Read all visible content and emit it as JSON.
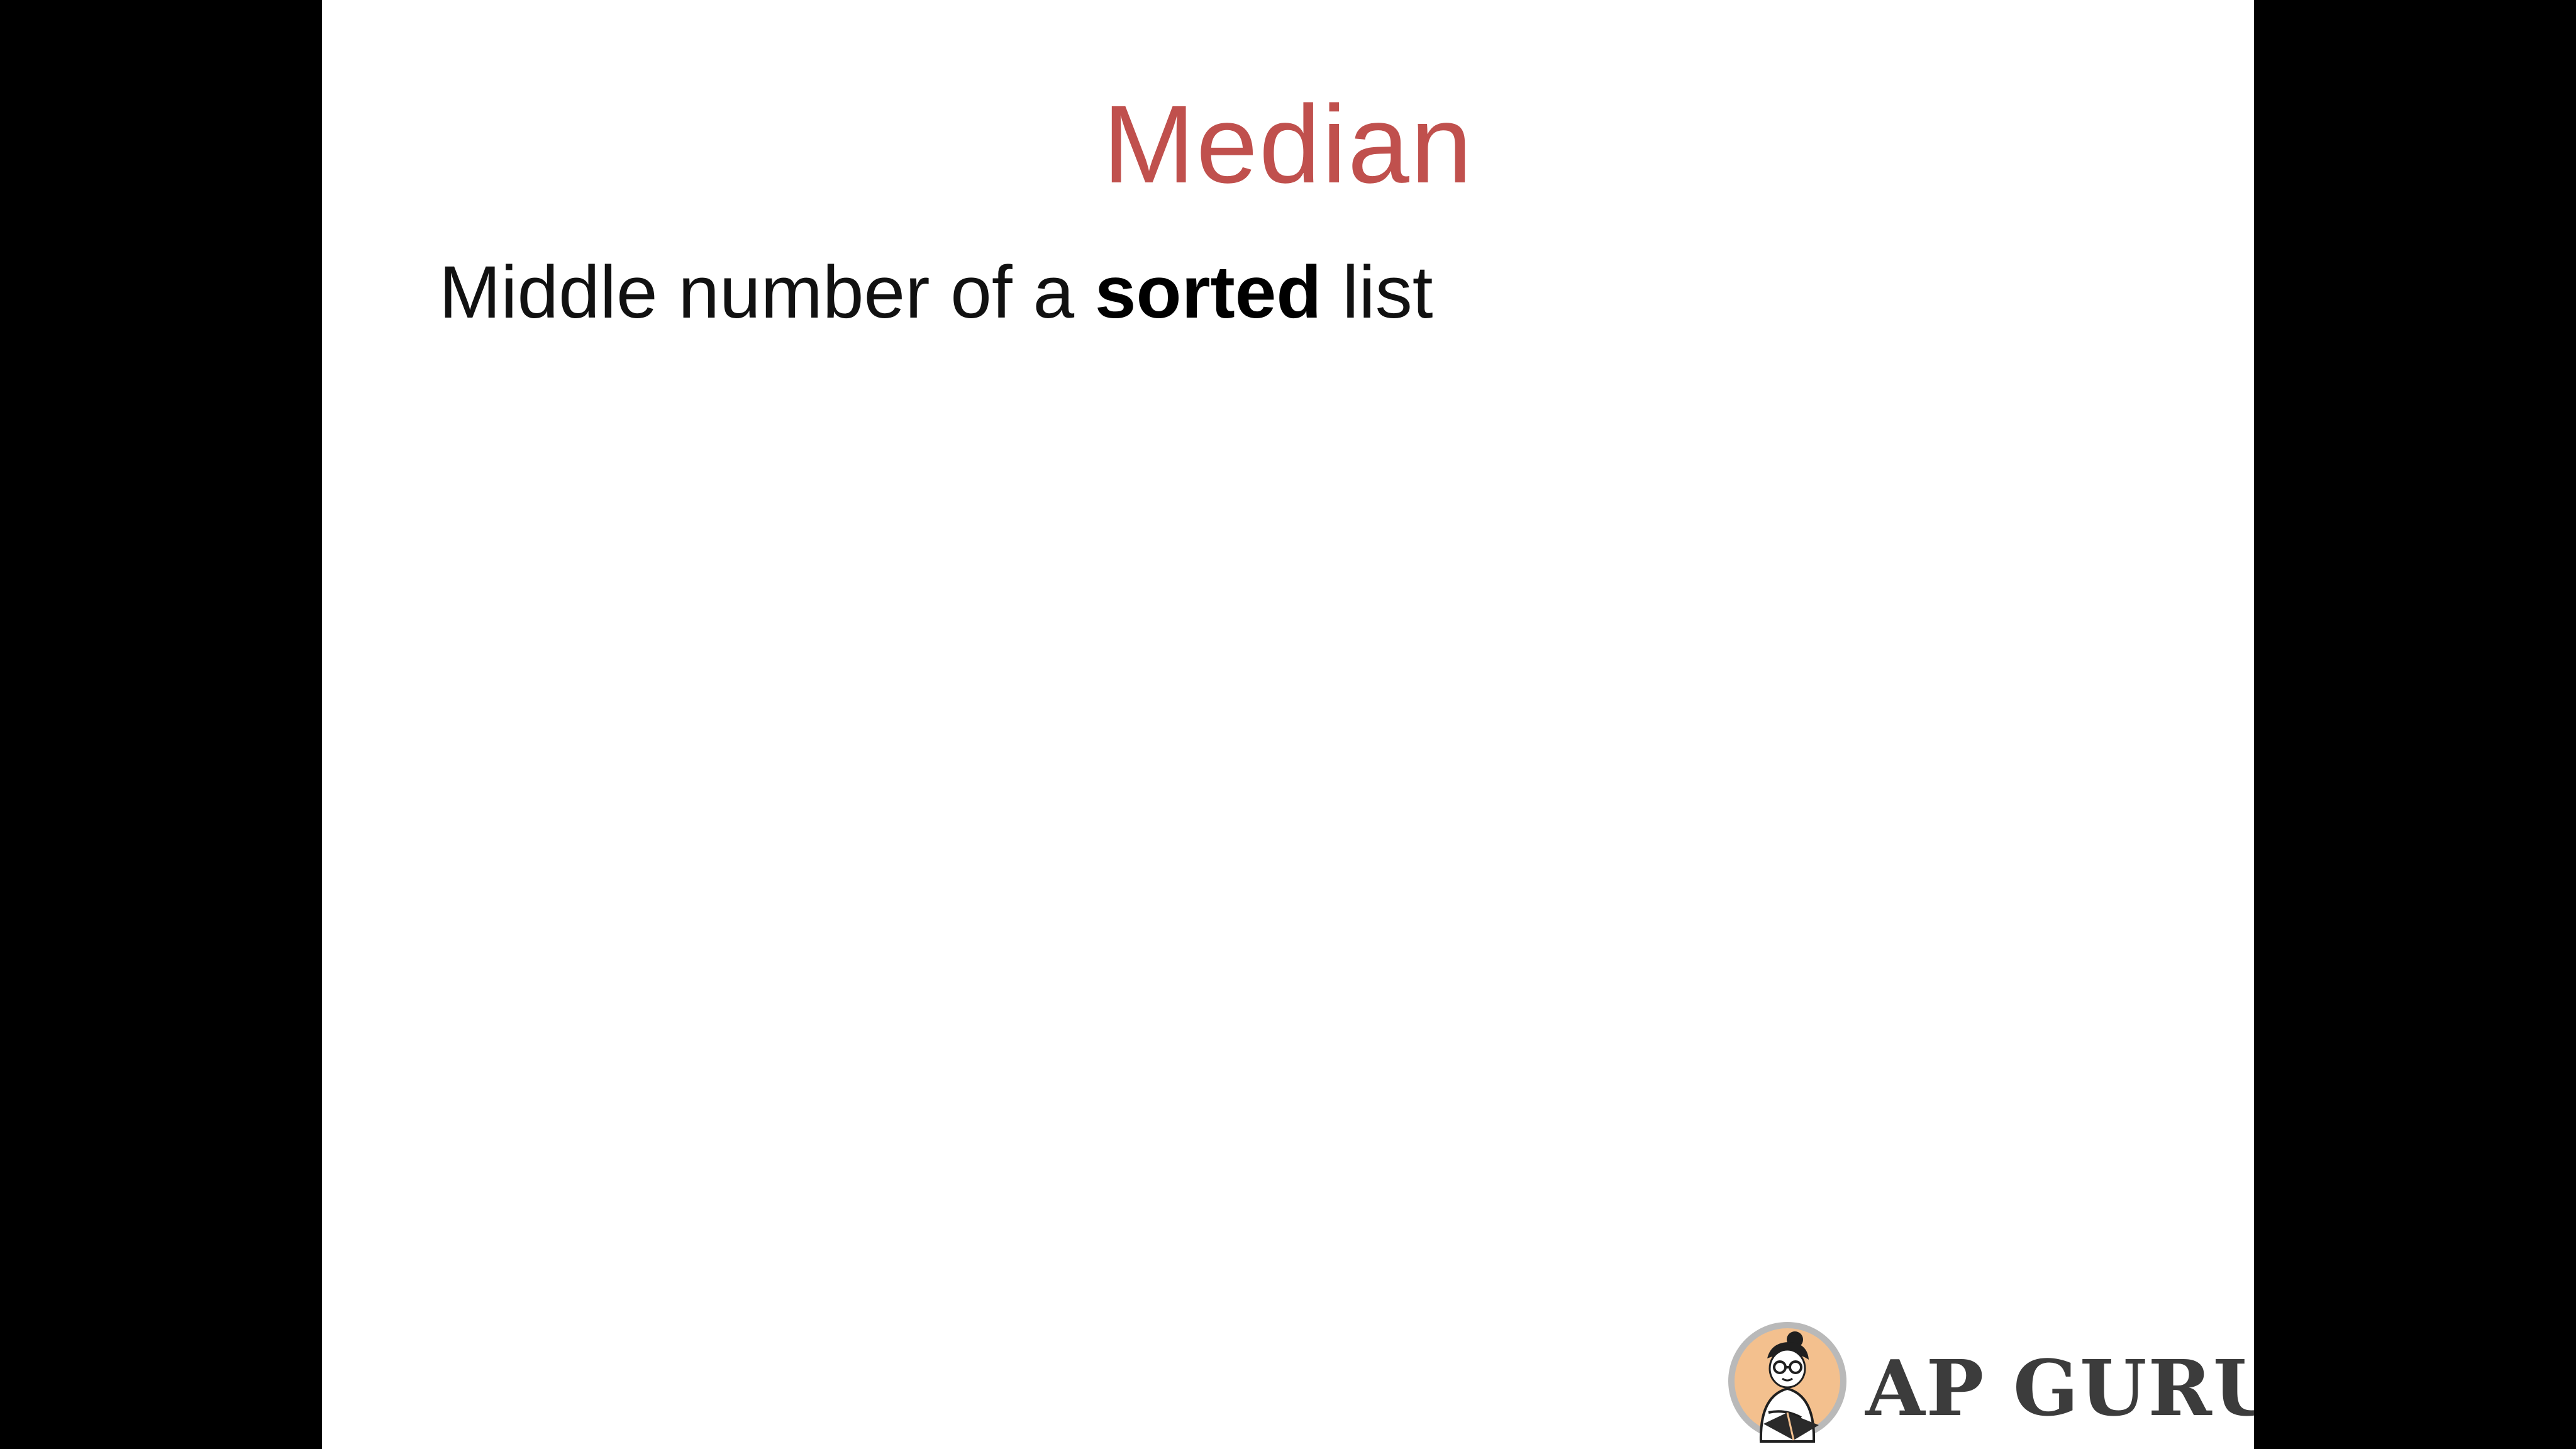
{
  "slide": {
    "title": "Median",
    "body": {
      "prefix": "Middle number of a ",
      "emphasis": "sorted",
      "suffix": " list"
    }
  },
  "logo": {
    "text": "AP GURU",
    "icon": "reading-person-badge-icon"
  },
  "colors": {
    "title": "#c0504d",
    "body_text": "#111111",
    "slide_background": "#ffffff",
    "letterbox": "#000000",
    "logo_text": "#3c3c3c",
    "badge_fill": "#f3c08e"
  }
}
